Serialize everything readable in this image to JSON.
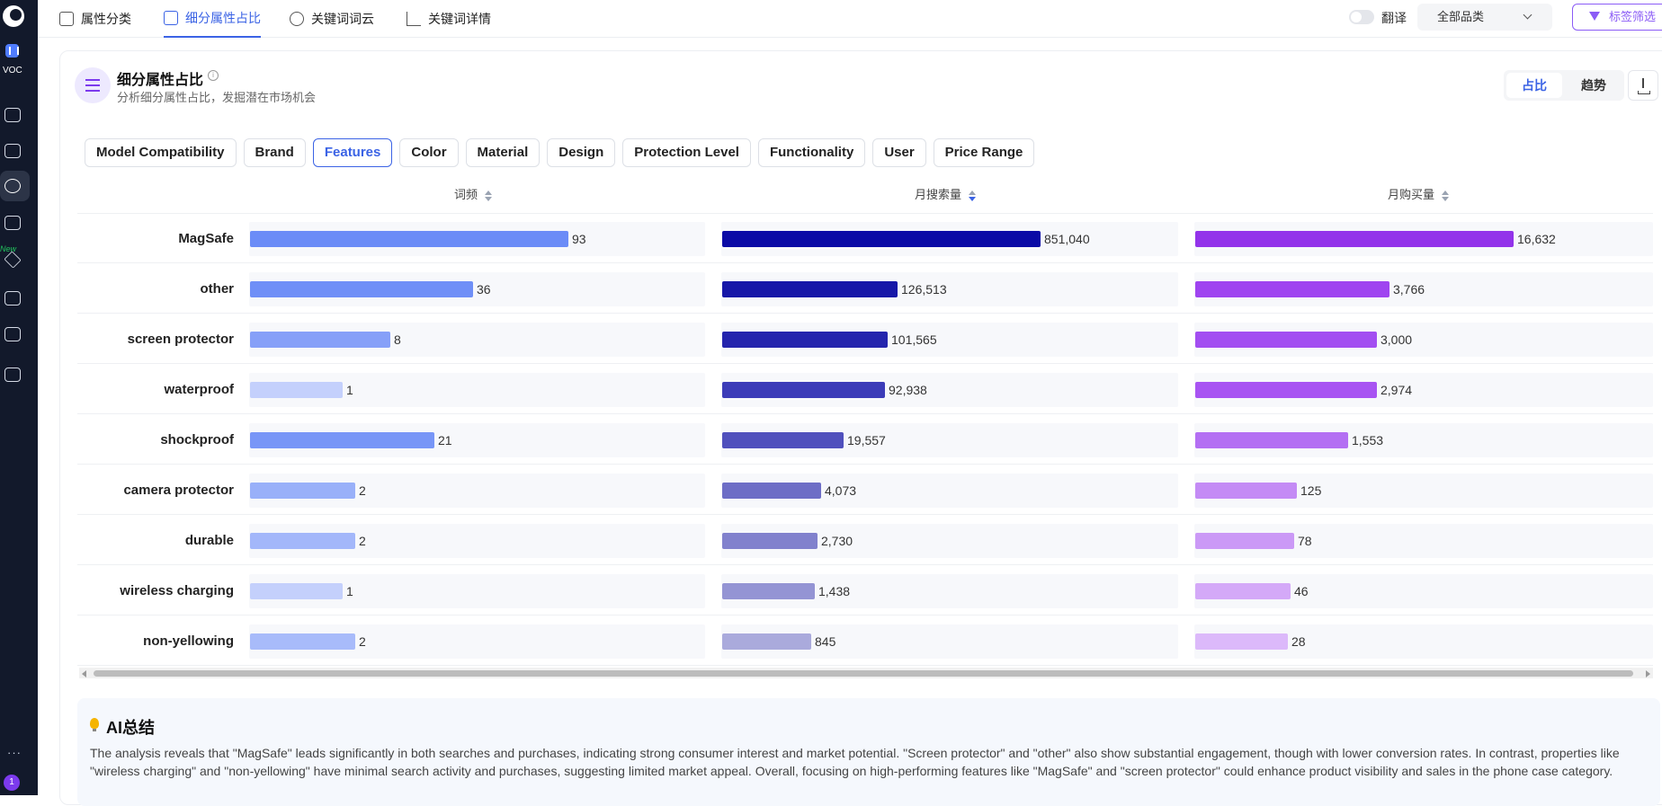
{
  "sidebar": {
    "app_label": "VOC",
    "new_label": "New",
    "more": "···",
    "badge_count": "1"
  },
  "topnav": {
    "tabs": [
      {
        "label": "属性分类",
        "icon": "grid-icon"
      },
      {
        "label": "细分属性占比",
        "icon": "list-icon"
      },
      {
        "label": "关键词词云",
        "icon": "cloud-icon"
      },
      {
        "label": "关键词详情",
        "icon": "line-chart-icon"
      }
    ],
    "active_tab": 1,
    "translate_label": "翻译",
    "category_select": "全部品类",
    "filter_button": "标签筛选"
  },
  "panel": {
    "title": "细分属性占比",
    "info_icon": "i",
    "subtitle": "分析细分属性占比，发掘潜在市场机会",
    "view_toggle": [
      "占比",
      "趋势"
    ],
    "active_view": 0
  },
  "attribute_tabs": [
    "Model Compatibility",
    "Brand",
    "Features",
    "Color",
    "Material",
    "Design",
    "Protection Level",
    "Functionality",
    "User",
    "Price Range"
  ],
  "active_attribute": "Features",
  "columns": [
    {
      "label": "词频",
      "sort": "none"
    },
    {
      "label": "月搜索量",
      "sort": "desc"
    },
    {
      "label": "月购买量",
      "sort": "none"
    }
  ],
  "table": {
    "rows": [
      {
        "name": "MagSafe",
        "freq": "93",
        "search": "851,040",
        "purchase": "16,632"
      },
      {
        "name": "other",
        "freq": "36",
        "search": "126,513",
        "purchase": "3,766"
      },
      {
        "name": "screen protector",
        "freq": "8",
        "search": "101,565",
        "purchase": "3,000"
      },
      {
        "name": "waterproof",
        "freq": "1",
        "search": "92,938",
        "purchase": "2,974"
      },
      {
        "name": "shockproof",
        "freq": "21",
        "search": "19,557",
        "purchase": "1,553"
      },
      {
        "name": "camera protector",
        "freq": "2",
        "search": "4,073",
        "purchase": "125"
      },
      {
        "name": "durable",
        "freq": "2",
        "search": "2,730",
        "purchase": "78"
      },
      {
        "name": "wireless charging",
        "freq": "1",
        "search": "1,438",
        "purchase": "46"
      },
      {
        "name": "non-yellowing",
        "freq": "2",
        "search": "845",
        "purchase": "28"
      }
    ],
    "bar_fill_fraction": {
      "freq": [
        1.0,
        0.7,
        0.44,
        0.29,
        0.58,
        0.33,
        0.33,
        0.29,
        0.33
      ],
      "search": [
        1.0,
        0.55,
        0.52,
        0.51,
        0.38,
        0.31,
        0.3,
        0.29,
        0.28
      ],
      "purchase": [
        1.0,
        0.61,
        0.57,
        0.57,
        0.48,
        0.32,
        0.31,
        0.3,
        0.29
      ]
    },
    "colors": {
      "freq": [
        "#6b8cf7",
        "#6f8ff7",
        "#86a0f8",
        "#c4d0fc",
        "#7896f7",
        "#99b0f9",
        "#a3b7fa",
        "#c4d0fc",
        "#a8bbfa"
      ],
      "search": [
        "#0b0ba6",
        "#1717a8",
        "#2424ad",
        "#3c3cb8",
        "#5050bd",
        "#6d6dc6",
        "#8181cd",
        "#9494d4",
        "#aaaadc"
      ],
      "purchase": [
        "#9333ea",
        "#9f44f0",
        "#a34ef1",
        "#a854f2",
        "#b46ff3",
        "#c48bf5",
        "#cb99f6",
        "#d4a9f8",
        "#dcb9fa"
      ]
    }
  },
  "ai_summary": {
    "title": "AI总结",
    "text": "The analysis reveals that \"MagSafe\" leads significantly in both searches and purchases, indicating strong consumer interest and market potential. \"Screen protector\" and \"other\" also show substantial engagement, though with lower conversion rates. In contrast, properties like \"wireless charging\" and \"non-yellowing\" have minimal search activity and purchases, suggesting limited market appeal. Overall, focusing on high-performing features like \"MagSafe\" and \"screen protector\" could enhance product visibility and sales in the phone case category."
  }
}
